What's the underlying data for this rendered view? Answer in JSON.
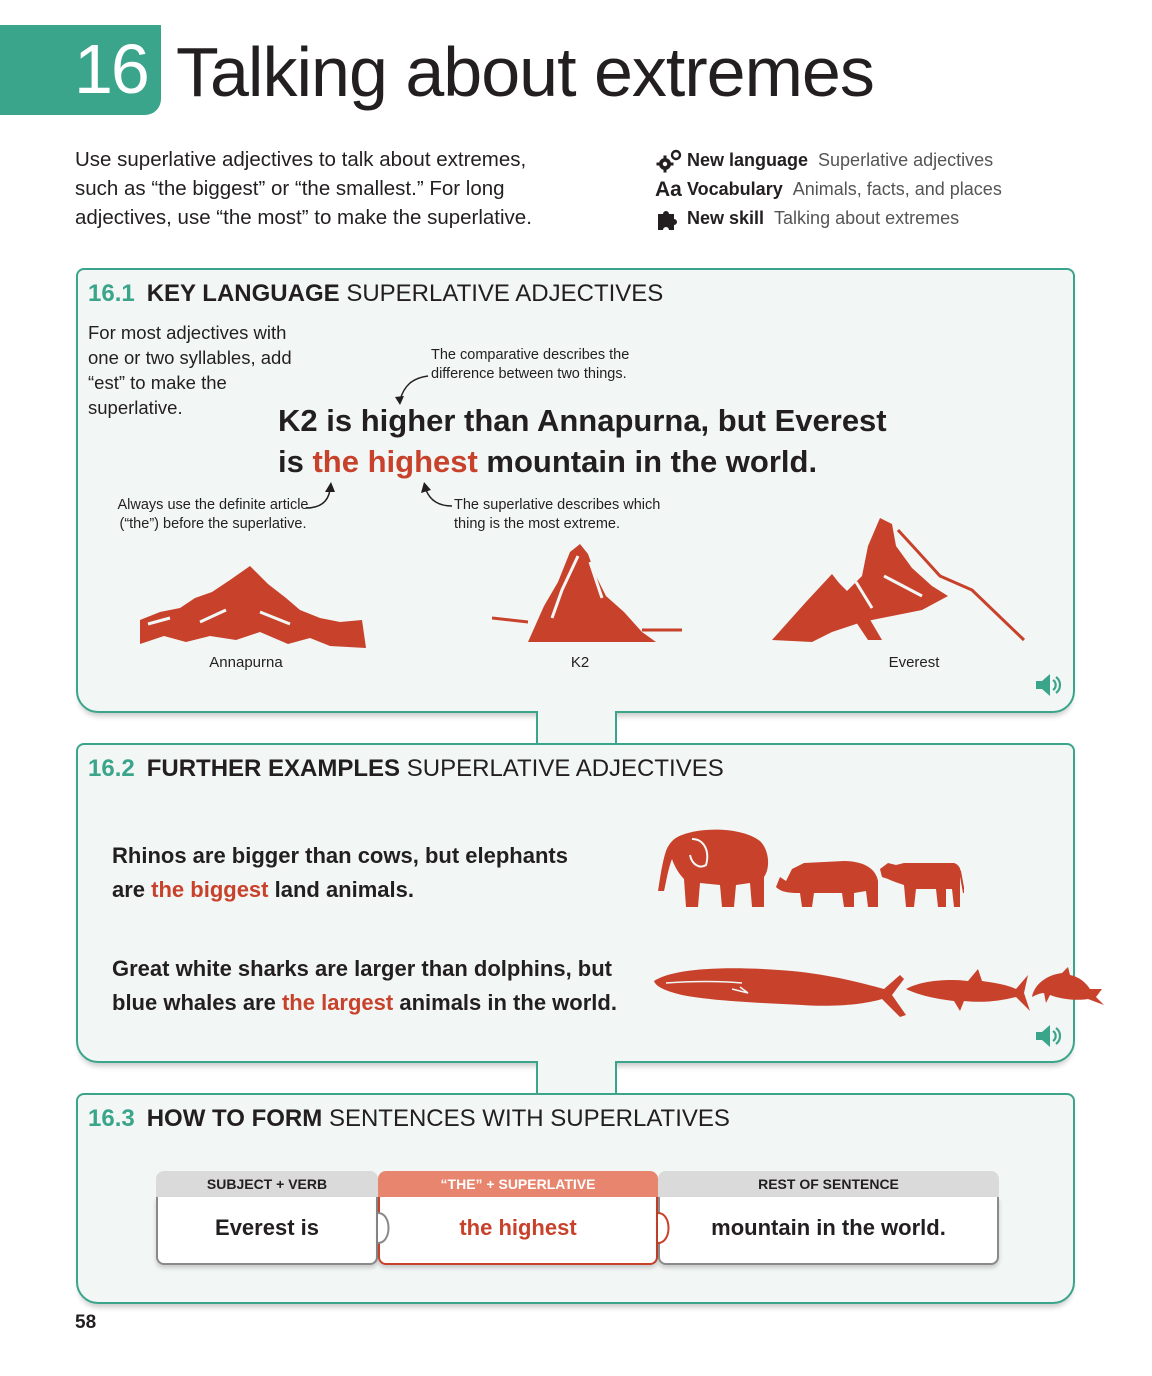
{
  "chapter": {
    "number": "16",
    "title": "Talking about extremes"
  },
  "intro": "Use superlative adjectives to talk about extremes, such as “the biggest” or “the smallest.” For long adjectives, use “the most” to make the superlative.",
  "meta": [
    {
      "icon": "gears-icon",
      "label": "New language",
      "value": "Superlative adjectives"
    },
    {
      "icon": "aa-icon",
      "glyph": "Aa",
      "label": "Vocabulary",
      "value": "Animals, facts, and places"
    },
    {
      "icon": "puzzle-icon",
      "label": "New skill",
      "value": "Talking about extremes"
    }
  ],
  "section1": {
    "number": "16.1",
    "bold": "KEY LANGUAGE",
    "rest": "SUPERLATIVE ADJECTIVES",
    "side_note": "For most adjectives with one or two syllables, add “est” to make the superlative.",
    "sentence_line1": "K2 is higher than Annapurna, but Everest",
    "sentence_line2_pre": "is ",
    "sentence_line2_hl": "the highest",
    "sentence_line2_post": " mountain in the world.",
    "note_comparative": "The comparative describes the difference between two things.",
    "note_article": "Always use the definite article (“the”) before the superlative.",
    "note_superlative": "The superlative describes which thing is the most extreme.",
    "mountains": [
      "Annapurna",
      "K2",
      "Everest"
    ]
  },
  "section2": {
    "number": "16.2",
    "bold": "FURTHER EXAMPLES",
    "rest": "SUPERLATIVE ADJECTIVES",
    "ex1_line1": "Rhinos are bigger than cows, but elephants",
    "ex1_line2_pre": "are ",
    "ex1_line2_hl": "the biggest",
    "ex1_line2_post": " land animals.",
    "ex2_line1": "Great white sharks are larger than dolphins, but",
    "ex2_line2_pre": "blue whales are ",
    "ex2_line2_hl": "the largest",
    "ex2_line2_post": " animals in the world."
  },
  "section3": {
    "number": "16.3",
    "bold": "HOW TO FORM",
    "rest": "SENTENCES WITH SUPERLATIVES",
    "columns": [
      {
        "header": "SUBJECT + VERB",
        "value": "Everest is"
      },
      {
        "header": "“THE” + SUPERLATIVE",
        "value": "the highest"
      },
      {
        "header": "REST OF SENTENCE",
        "value": "mountain in the world."
      }
    ]
  },
  "page_number": "58",
  "colors": {
    "accent_green": "#3aa58b",
    "highlight_red": "#c8412b",
    "panel_bg": "#f2f6f5"
  }
}
